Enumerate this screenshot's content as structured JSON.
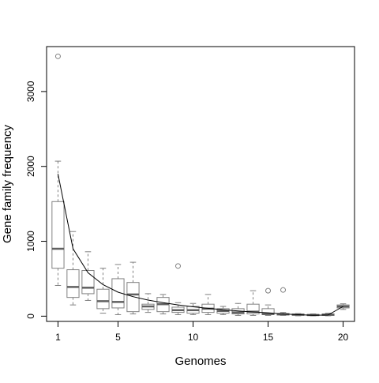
{
  "chart_data": {
    "type": "boxplot",
    "title": "",
    "xlabel": "Genomes",
    "ylabel": "Gene family frequency",
    "xlim": [
      0.24,
      20.76
    ],
    "ylim": [
      -70,
      3600
    ],
    "x_ticks": [
      1,
      5,
      10,
      15,
      20
    ],
    "x_tick_labels": [
      "1",
      "5",
      "10",
      "15",
      "20"
    ],
    "y_ticks": [
      0,
      1000,
      2000,
      3000
    ],
    "y_tick_labels": [
      "0",
      "1000",
      "2000",
      "3000"
    ],
    "grid": false,
    "legend": "none",
    "colors": {
      "box": "#808080",
      "median": "#606060",
      "line": "#000000",
      "axis": "#000000"
    },
    "boxes": [
      {
        "x": 1,
        "low": 410,
        "q1": 640,
        "median": 900,
        "q3": 1530,
        "high": 2070,
        "outliers": [
          3470
        ]
      },
      {
        "x": 2,
        "low": 150,
        "q1": 250,
        "median": 390,
        "q3": 620,
        "high": 1130,
        "outliers": []
      },
      {
        "x": 3,
        "low": 210,
        "q1": 300,
        "median": 380,
        "q3": 610,
        "high": 860,
        "outliers": []
      },
      {
        "x": 4,
        "low": 40,
        "q1": 100,
        "median": 200,
        "q3": 360,
        "high": 640,
        "outliers": []
      },
      {
        "x": 5,
        "low": 20,
        "q1": 110,
        "median": 190,
        "q3": 500,
        "high": 690,
        "outliers": []
      },
      {
        "x": 6,
        "low": 30,
        "q1": 60,
        "median": 290,
        "q3": 450,
        "high": 720,
        "outliers": []
      },
      {
        "x": 7,
        "low": 50,
        "q1": 90,
        "median": 130,
        "q3": 160,
        "high": 300,
        "outliers": []
      },
      {
        "x": 8,
        "low": 30,
        "q1": 60,
        "median": 160,
        "q3": 250,
        "high": 290,
        "outliers": []
      },
      {
        "x": 9,
        "low": 20,
        "q1": 50,
        "median": 80,
        "q3": 120,
        "high": 180,
        "outliers": [
          670
        ]
      },
      {
        "x": 10,
        "low": 20,
        "q1": 40,
        "median": 80,
        "q3": 130,
        "high": 170,
        "outliers": []
      },
      {
        "x": 11,
        "low": 20,
        "q1": 50,
        "median": 100,
        "q3": 160,
        "high": 290,
        "outliers": []
      },
      {
        "x": 12,
        "low": 20,
        "q1": 40,
        "median": 70,
        "q3": 100,
        "high": 130,
        "outliers": []
      },
      {
        "x": 13,
        "low": 10,
        "q1": 30,
        "median": 50,
        "q3": 100,
        "high": 170,
        "outliers": []
      },
      {
        "x": 14,
        "low": 10,
        "q1": 30,
        "median": 60,
        "q3": 160,
        "high": 340,
        "outliers": []
      },
      {
        "x": 15,
        "low": 10,
        "q1": 20,
        "median": 30,
        "q3": 100,
        "high": 150,
        "outliers": [
          340
        ]
      },
      {
        "x": 16,
        "low": 10,
        "q1": 15,
        "median": 25,
        "q3": 35,
        "high": 50,
        "outliers": [
          350
        ]
      },
      {
        "x": 17,
        "low": 5,
        "q1": 12,
        "median": 20,
        "q3": 28,
        "high": 35,
        "outliers": []
      },
      {
        "x": 18,
        "low": 5,
        "q1": 10,
        "median": 15,
        "q3": 22,
        "high": 30,
        "outliers": []
      },
      {
        "x": 19,
        "low": 5,
        "q1": 10,
        "median": 20,
        "q3": 30,
        "high": 40,
        "outliers": []
      },
      {
        "x": 20,
        "low": 90,
        "q1": 110,
        "median": 130,
        "q3": 150,
        "high": 165,
        "outliers": []
      }
    ],
    "trend_line": {
      "x": [
        1,
        2,
        3,
        4,
        5,
        6,
        7,
        8,
        9,
        10,
        11,
        12,
        13,
        14,
        15,
        16,
        17,
        18,
        19,
        20
      ],
      "y": [
        1900,
        900,
        580,
        420,
        320,
        260,
        215,
        180,
        150,
        125,
        105,
        85,
        70,
        55,
        45,
        30,
        20,
        12,
        15,
        130
      ]
    }
  }
}
